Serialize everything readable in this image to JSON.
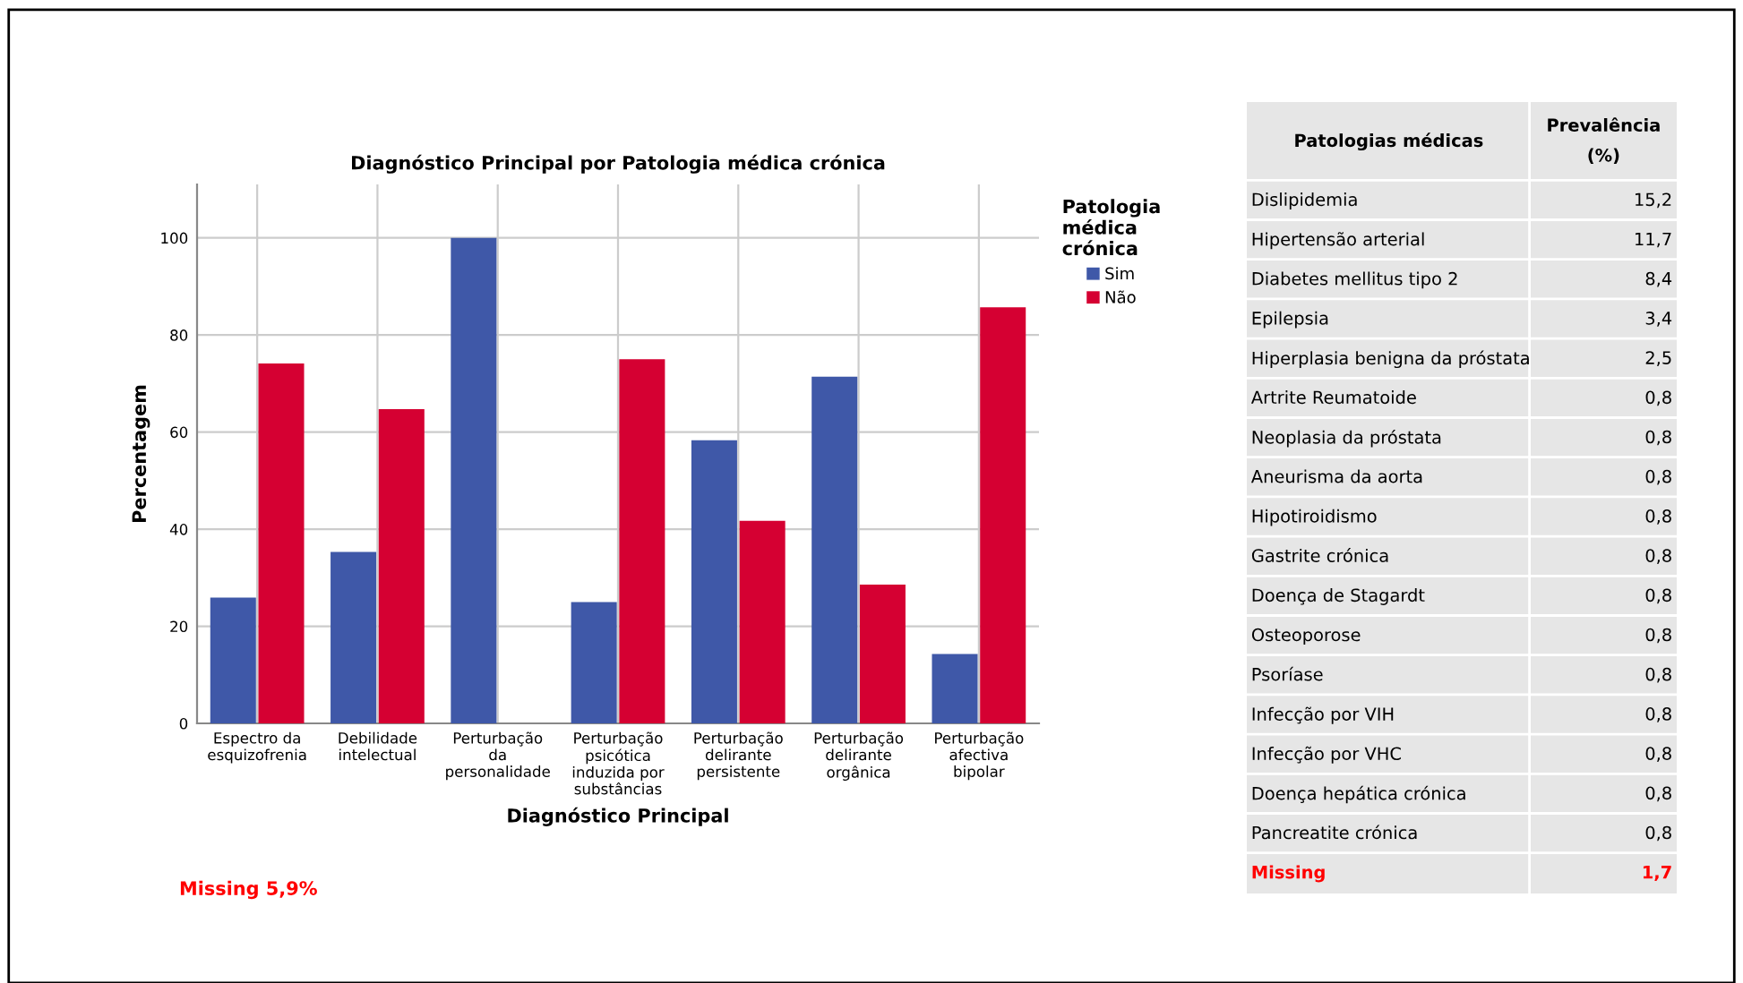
{
  "chart_data": [
    {
      "type": "bar",
      "title": "Diagnóstico Principal por Patologia médica crónica",
      "xlabel": "Diagnóstico Principal",
      "ylabel": "Percentagem",
      "categories": [
        "Espectro da\nesquizofrenia",
        "Debilidade\nintelectual",
        "Perturbação\nda\npersonalidade",
        "Perturbação\npsicótica\ninduzida por\nsubstâncias",
        "Perturbação\ndelirante\npersistente",
        "Perturbação\ndelirante\norgânica",
        "Perturbação\nafectiva\nbipolar"
      ],
      "series": [
        {
          "name": "Sim",
          "color": "#3f58a8",
          "values": [
            25.9,
            35.3,
            100,
            25,
            58.3,
            71.4,
            14.3
          ]
        },
        {
          "name": "Não",
          "color": "#d50032",
          "values": [
            74.1,
            64.7,
            null,
            75,
            41.7,
            28.6,
            85.7
          ]
        }
      ],
      "ylim": [
        0,
        111
      ],
      "yticks": [
        0,
        20,
        40,
        60,
        80,
        100
      ],
      "grid": true,
      "legend": "right",
      "legend_title": "Patologia\nmédica\ncrónica",
      "annotations": [
        "Missing 5,9%"
      ]
    },
    {
      "type": "other",
      "annotations": [
        "Patologias médicas",
        "Prevalência\n(%)"
      ],
      "categories": [
        "Dislipidemia",
        "Hipertensão arterial",
        "Diabetes mellitus tipo 2",
        "Epilepsia",
        "Hiperplasia benigna da próstata",
        "Artrite Reumatoide",
        "Neoplasia da próstata",
        "Aneurisma da aorta",
        "Hipotiroidismo",
        "Gastrite crónica",
        "Doença de Stagardt",
        "Osteoporose",
        "Psoríase",
        "Infecção por VIH",
        "Infecção por VHC",
        "Doença hepática crónica",
        "Pancreatite crónica",
        "Missing"
      ],
      "value_labels": [
        "15,2",
        "11,7",
        "8,4",
        "3,4",
        "2,5",
        "0,8",
        "0,8",
        "0,8",
        "0,8",
        "0,8",
        "0,8",
        "0,8",
        "0,8",
        "0,8",
        "0,8",
        "0,8",
        "0,8",
        "1,7"
      ],
      "colors": [
        "#000000",
        "#000000",
        "#000000",
        "#000000",
        "#000000",
        "#000000",
        "#000000",
        "#000000",
        "#000000",
        "#000000",
        "#000000",
        "#000000",
        "#000000",
        "#000000",
        "#000000",
        "#000000",
        "#000000",
        "#ff0000"
      ]
    }
  ]
}
